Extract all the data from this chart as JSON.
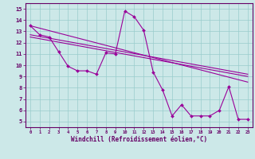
{
  "xlabel": "Windchill (Refroidissement éolien,°C)",
  "bg_color": "#cce8e8",
  "line_color": "#990099",
  "grid_color": "#99cccc",
  "xlim": [
    -0.5,
    23.5
  ],
  "ylim": [
    4.5,
    15.5
  ],
  "xticks": [
    0,
    1,
    2,
    3,
    4,
    5,
    6,
    7,
    8,
    9,
    10,
    11,
    12,
    13,
    14,
    15,
    16,
    17,
    18,
    19,
    20,
    21,
    22,
    23
  ],
  "yticks": [
    5,
    6,
    7,
    8,
    9,
    10,
    11,
    12,
    13,
    14,
    15
  ],
  "series1_x": [
    0,
    1,
    2,
    3,
    4,
    5,
    6,
    7,
    8,
    9,
    10,
    11,
    12,
    13,
    14,
    15,
    16,
    17,
    18,
    19,
    20,
    21,
    22,
    23
  ],
  "series1_y": [
    13.5,
    12.7,
    12.5,
    11.2,
    9.9,
    9.5,
    9.5,
    9.2,
    11.1,
    11.0,
    14.8,
    14.3,
    13.1,
    9.4,
    7.8,
    5.5,
    6.5,
    5.5,
    5.5,
    5.5,
    6.0,
    8.1,
    5.2,
    5.2
  ],
  "series2_x": [
    0,
    23
  ],
  "series2_y": [
    13.5,
    8.5
  ],
  "series3_x": [
    0,
    23
  ],
  "series3_y": [
    12.7,
    9.2
  ],
  "series4_x": [
    0,
    23
  ],
  "series4_y": [
    12.5,
    9.0
  ]
}
